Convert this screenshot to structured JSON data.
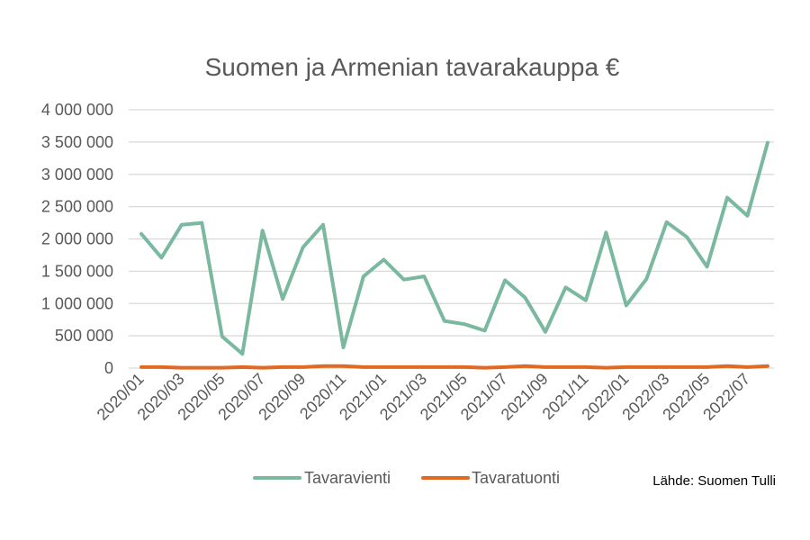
{
  "chart_data": {
    "type": "line",
    "title": "Suomen ja Armenian tavarakauppa €",
    "source": "Lähde: Suomen Tulli",
    "ylim": [
      0,
      4000000
    ],
    "yticks": [
      "0",
      "500 000",
      "1 000 000",
      "1 500 000",
      "2 000 000",
      "2 500 000",
      "3 000 000",
      "3 500 000",
      "4 000 000"
    ],
    "ytick_values": [
      0,
      500000,
      1000000,
      1500000,
      2000000,
      2500000,
      3000000,
      3500000,
      4000000
    ],
    "x": [
      "2020/01",
      "2020/02",
      "2020/03",
      "2020/04",
      "2020/05",
      "2020/06",
      "2020/07",
      "2020/08",
      "2020/09",
      "2020/10",
      "2020/11",
      "2020/12",
      "2021/01",
      "2021/02",
      "2021/03",
      "2021/04",
      "2021/05",
      "2021/06",
      "2021/07",
      "2021/08",
      "2021/09",
      "2021/10",
      "2021/11",
      "2021/12",
      "2022/01",
      "2022/02",
      "2022/03",
      "2022/04",
      "2022/05",
      "2022/06",
      "2022/07",
      "2022/08"
    ],
    "xticks": [
      "2020/01",
      "2020/03",
      "2020/05",
      "2020/07",
      "2020/09",
      "2020/11",
      "2021/01",
      "2021/03",
      "2021/05",
      "2021/07",
      "2021/09",
      "2021/11",
      "2022/01",
      "2022/03",
      "2022/05",
      "2022/07"
    ],
    "grid": true,
    "legend_position": "bottom",
    "series": [
      {
        "name": "Tavaravienti",
        "color": "#7bb8a0",
        "values": [
          2080000,
          1710000,
          2220000,
          2250000,
          490000,
          220000,
          2130000,
          1070000,
          1870000,
          2220000,
          320000,
          1420000,
          1680000,
          1370000,
          1420000,
          730000,
          680000,
          580000,
          1360000,
          1090000,
          560000,
          1250000,
          1050000,
          2100000,
          970000,
          1380000,
          2260000,
          2030000,
          1570000,
          2640000,
          2360000,
          3490000
        ]
      },
      {
        "name": "Tavaratuonti",
        "color": "#e06a23",
        "values": [
          15000,
          15000,
          5000,
          5000,
          5000,
          15000,
          5000,
          15000,
          15000,
          30000,
          30000,
          15000,
          15000,
          15000,
          15000,
          15000,
          15000,
          5000,
          15000,
          30000,
          15000,
          15000,
          15000,
          5000,
          15000,
          15000,
          15000,
          15000,
          15000,
          30000,
          15000,
          30000
        ]
      }
    ]
  }
}
